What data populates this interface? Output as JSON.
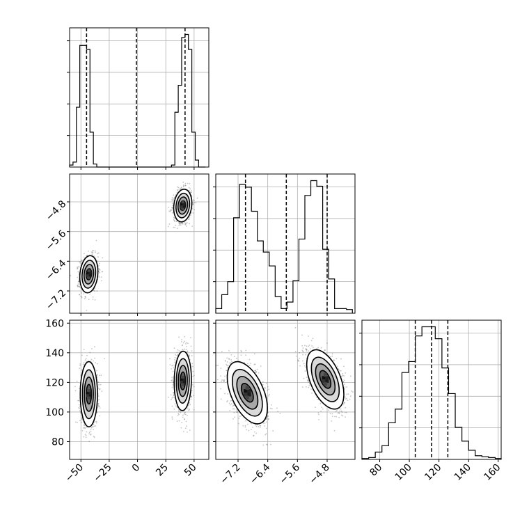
{
  "chart_data": {
    "type": "corner",
    "params": [
      "p0",
      "p1",
      "p2"
    ],
    "axis_ranges": {
      "p0": [
        -60,
        63
      ],
      "p1": [
        -7.8,
        -4.05
      ],
      "p2": [
        68,
        162
      ]
    },
    "ticks": {
      "p0": {
        "values": [
          -50,
          -25,
          0,
          25,
          50
        ],
        "labels": [
          "−50",
          "−25",
          "0",
          "25",
          "50"
        ]
      },
      "p1": {
        "values": [
          -7.2,
          -6.4,
          -5.6,
          -4.8
        ],
        "labels": [
          "−7.2",
          "−6.4",
          "−5.6",
          "−4.8"
        ]
      },
      "p2": {
        "values": [
          80,
          100,
          120,
          140,
          160
        ],
        "labels": [
          "80",
          "100",
          "120",
          "140",
          "160"
        ]
      }
    },
    "grid": true,
    "histograms": {
      "p0": {
        "edges": [
          -60,
          -57,
          -54,
          -51,
          -48,
          -45,
          -42,
          -39,
          -36,
          -33,
          -30,
          30,
          33,
          36,
          39,
          42,
          45,
          48,
          51,
          54,
          57,
          60
        ],
        "counts": [
          2,
          5,
          60,
          122,
          122,
          118,
          35,
          3,
          0,
          0,
          0,
          2,
          55,
          82,
          130,
          133,
          118,
          35,
          7,
          0,
          0
        ],
        "quantiles": [
          -45,
          -1,
          42
        ]
      },
      "p1": {
        "edges": [
          -7.8,
          -7.64,
          -7.48,
          -7.32,
          -7.16,
          -7.0,
          -6.84,
          -6.68,
          -6.52,
          -6.36,
          -6.2,
          -6.04,
          -5.88,
          -5.72,
          -5.56,
          -5.4,
          -5.24,
          -5.08,
          -4.92,
          -4.76,
          -4.6,
          -4.44,
          -4.28,
          -4.12
        ],
        "counts": [
          5,
          20,
          34,
          103,
          139,
          136,
          110,
          78,
          66,
          51,
          18,
          5,
          12,
          35,
          80,
          127,
          143,
          137,
          69,
          37,
          5,
          5,
          4
        ],
        "quantiles": [
          -7.0,
          -5.9,
          -4.8
        ]
      },
      "p2": {
        "edges": [
          68,
          72.5,
          77,
          81.5,
          86,
          90.5,
          95,
          99.5,
          104,
          108.5,
          113,
          117.5,
          122,
          126.5,
          131,
          135.5,
          140,
          144.5,
          149,
          153.5,
          158,
          162
        ],
        "counts": [
          1,
          2,
          8,
          15,
          40,
          55,
          95,
          107,
          135,
          145,
          145,
          132,
          100,
          72,
          35,
          20,
          10,
          4,
          3,
          2,
          1
        ],
        "quantiles": [
          104,
          115,
          126
        ]
      }
    },
    "scatter_2d": [
      {
        "x_param": "p0",
        "y_param": "p1",
        "modes": [
          {
            "center": [
              -43,
              -6.75
            ],
            "sd": [
              4,
              0.25
            ],
            "rho": 0.15,
            "n": 900
          },
          {
            "center": [
              40,
              -4.9
            ],
            "sd": [
              4,
              0.22
            ],
            "rho": 0.15,
            "n": 900
          }
        ]
      },
      {
        "x_param": "p0",
        "y_param": "p2",
        "modes": [
          {
            "center": [
              -43,
              112
            ],
            "sd": [
              3.8,
              11
            ],
            "rho": 0.0,
            "n": 900
          },
          {
            "center": [
              40,
              121
            ],
            "sd": [
              3.8,
              10
            ],
            "rho": 0.05,
            "n": 900
          }
        ]
      },
      {
        "x_param": "p1",
        "y_param": "p2",
        "modes": [
          {
            "center": [
              -6.95,
              113
            ],
            "sd": [
              0.27,
              10.5
            ],
            "rho": -0.5,
            "n": 1100
          },
          {
            "center": [
              -4.85,
              122
            ],
            "sd": [
              0.25,
              10
            ],
            "rho": -0.5,
            "n": 1100
          }
        ]
      }
    ]
  }
}
